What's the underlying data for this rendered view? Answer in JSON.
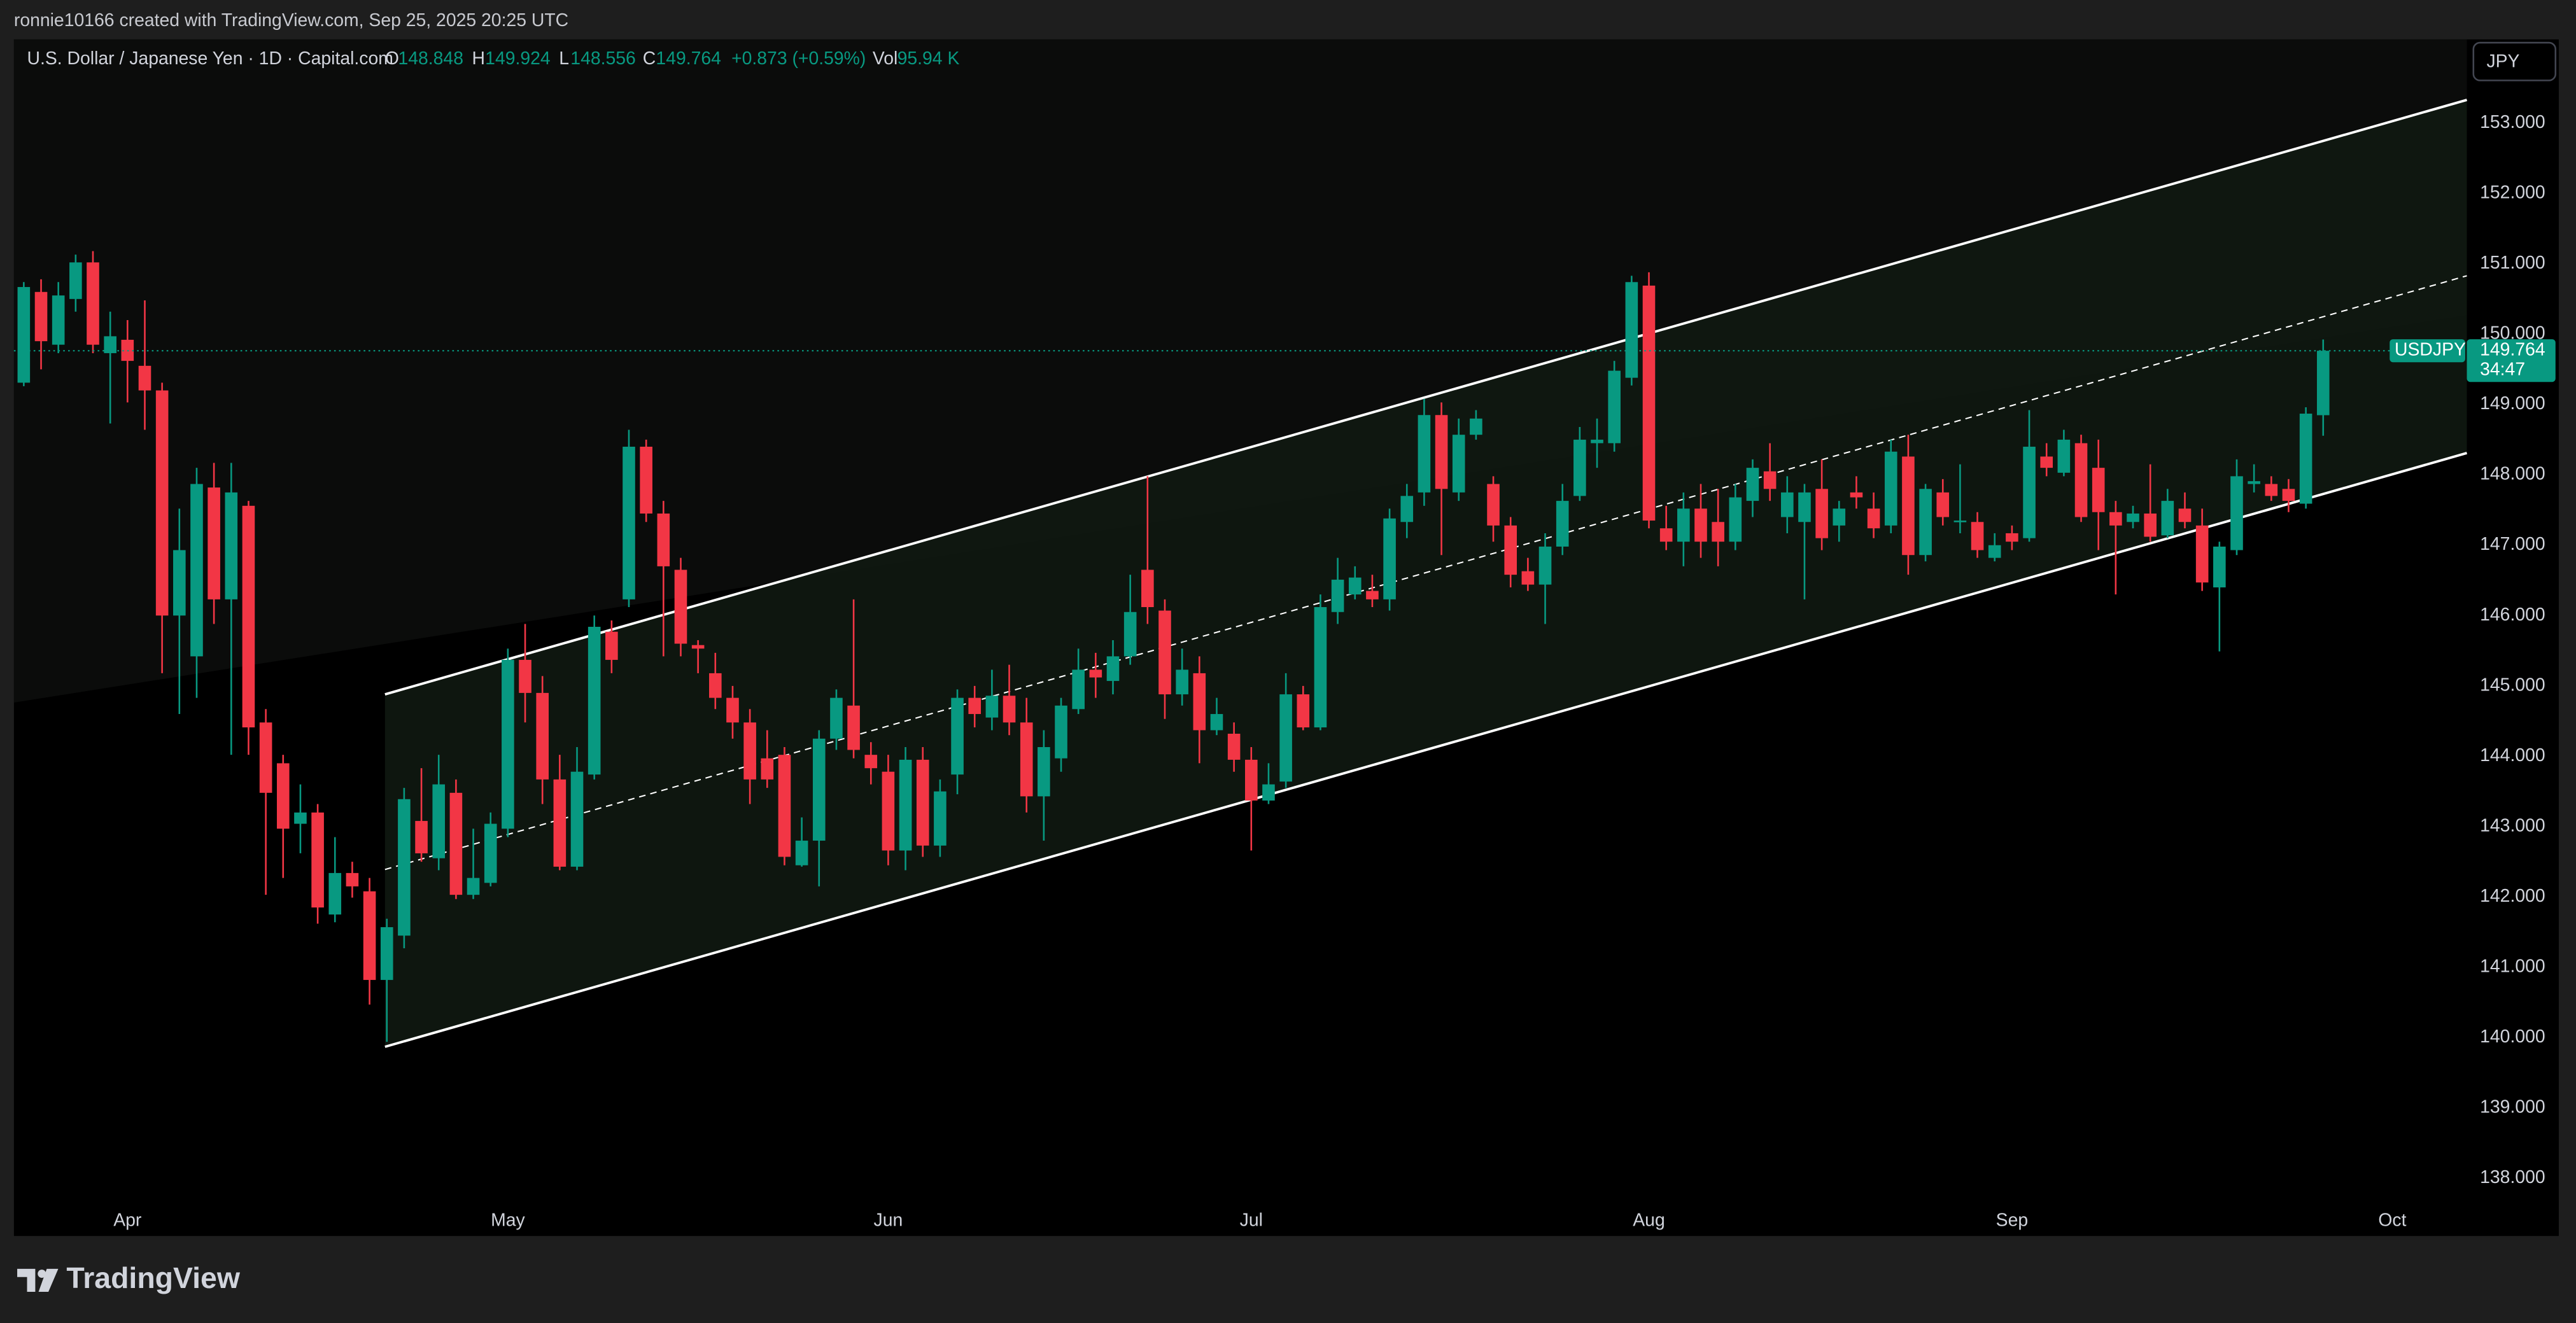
{
  "attribution": "ronnie10166 created with TradingView.com, Sep 25, 2025 20:25 UTC",
  "brand": "TradingView",
  "currency_button": "JPY",
  "chart_data": {
    "type": "candlestick",
    "title": "U.S. Dollar / Japanese Yen · 1D · Capital.com",
    "ohlc_labels": [
      "O",
      "H",
      "L",
      "C"
    ],
    "change": "+0.873 (+0.59%)",
    "volume_label": "Vol",
    "volume": "95.94 K",
    "symbol_label": "USDJPY",
    "countdown": "34:47",
    "up_color": "#089981",
    "down_color": "#f23645",
    "categories": [
      null,
      null,
      null,
      null,
      null,
      null,
      "Apr",
      null,
      null,
      null,
      null,
      null,
      null,
      null,
      null,
      null,
      null,
      null,
      null,
      null,
      null,
      null,
      null,
      null,
      null,
      null,
      null,
      null,
      "May",
      null,
      null,
      null,
      null,
      null,
      null,
      null,
      null,
      null,
      null,
      null,
      null,
      null,
      null,
      null,
      null,
      null,
      null,
      null,
      null,
      null,
      "Jun",
      null,
      null,
      null,
      null,
      null,
      null,
      null,
      null,
      null,
      null,
      null,
      null,
      null,
      null,
      null,
      null,
      null,
      null,
      null,
      null,
      "Jul",
      null,
      null,
      null,
      null,
      null,
      null,
      null,
      null,
      null,
      null,
      null,
      null,
      null,
      null,
      null,
      null,
      null,
      null,
      null,
      null,
      null,
      null,
      "Aug",
      null,
      null,
      null,
      null,
      null,
      null,
      null,
      null,
      null,
      null,
      null,
      null,
      null,
      null,
      null,
      null,
      null,
      null,
      null,
      null,
      "Sep",
      null,
      null,
      null,
      null,
      null,
      null,
      null,
      null,
      null,
      null,
      null,
      null,
      null,
      null,
      null,
      null,
      null,
      null,
      null,
      null,
      null,
      "Oct"
    ],
    "open": [
      149.31,
      150.6,
      149.85,
      150.5,
      151.02,
      149.73,
      149.92,
      149.55,
      149.2,
      146.0,
      145.42,
      147.82,
      146.23,
      147.56,
      144.48,
      143.9,
      143.04,
      143.2,
      141.75,
      142.34,
      142.08,
      140.82,
      141.45,
      143.08,
      142.55,
      143.48,
      142.03,
      142.2,
      142.97,
      145.37,
      144.9,
      143.67,
      142.43,
      143.74,
      145.77,
      146.23,
      148.4,
      147.45,
      146.65,
      145.58,
      145.18,
      144.83,
      144.48,
      143.97,
      144.02,
      142.45,
      142.8,
      144.25,
      144.72,
      144.02,
      143.78,
      142.66,
      143.95,
      142.73,
      143.74,
      144.83,
      144.55,
      144.86,
      144.48,
      143.43,
      143.97,
      144.67,
      145.23,
      145.07,
      145.42,
      146.65,
      146.07,
      144.88,
      145.18,
      144.37,
      144.32,
      143.95,
      143.37,
      143.64,
      144.88,
      144.41,
      146.05,
      146.3,
      146.35,
      146.23,
      147.33,
      147.75,
      148.85,
      147.75,
      148.57,
      147.87,
      147.28,
      146.63,
      146.44,
      146.98,
      147.7,
      148.45,
      148.45,
      149.38,
      150.69,
      147.24,
      147.05,
      147.52,
      147.33,
      147.05,
      147.63,
      148.05,
      147.4,
      147.33,
      147.8,
      147.28,
      147.75,
      147.52,
      147.28,
      148.26,
      146.86,
      147.75,
      147.33,
      147.33,
      146.82,
      147.17,
      147.1,
      148.26,
      148.03,
      148.45,
      148.1,
      147.47,
      147.33,
      147.45,
      147.14,
      147.52,
      147.28,
      146.4,
      146.93,
      147.87,
      147.87,
      147.8,
      147.59,
      148.848,
      null,
      null,
      null,
      null
    ],
    "high": [
      150.74,
      150.78,
      150.74,
      151.13,
      151.18,
      150.32,
      150.2,
      150.48,
      149.31,
      147.52,
      148.1,
      148.17,
      148.17,
      147.63,
      144.67,
      144.02,
      143.6,
      143.32,
      142.85,
      142.5,
      142.27,
      141.69,
      143.55,
      143.83,
      144.02,
      143.67,
      142.97,
      143.2,
      145.53,
      145.88,
      145.14,
      144.02,
      144.13,
      146.0,
      145.93,
      148.64,
      148.5,
      147.63,
      146.82,
      145.65,
      145.47,
      145.0,
      144.67,
      144.37,
      144.13,
      143.13,
      144.37,
      144.95,
      146.23,
      144.2,
      144.02,
      144.13,
      144.13,
      143.67,
      144.95,
      145.0,
      145.23,
      145.3,
      144.83,
      144.37,
      144.83,
      145.53,
      145.47,
      145.65,
      146.58,
      147.98,
      146.23,
      145.53,
      145.42,
      144.83,
      144.48,
      144.13,
      143.9,
      145.18,
      145.0,
      146.3,
      146.82,
      146.7,
      146.58,
      147.52,
      147.87,
      149.08,
      149.03,
      148.8,
      148.92,
      147.98,
      147.4,
      146.82,
      147.17,
      147.87,
      148.68,
      148.8,
      149.62,
      150.83,
      150.88,
      147.56,
      147.75,
      147.87,
      147.8,
      147.87,
      148.22,
      148.45,
      147.98,
      147.87,
      148.22,
      147.63,
      147.98,
      147.75,
      148.5,
      148.57,
      147.87,
      147.94,
      148.15,
      147.47,
      147.17,
      147.28,
      148.92,
      148.45,
      148.64,
      148.57,
      148.5,
      147.63,
      147.56,
      148.15,
      147.8,
      147.75,
      147.52,
      147.05,
      148.22,
      148.15,
      147.98,
      147.94,
      148.96,
      149.924,
      null,
      null,
      null,
      null
    ],
    "low": [
      149.26,
      149.5,
      149.73,
      150.32,
      149.73,
      148.73,
      149.03,
      148.64,
      145.18,
      144.6,
      144.83,
      145.88,
      144.02,
      144.02,
      142.03,
      142.27,
      142.62,
      141.62,
      141.64,
      141.99,
      140.47,
      139.94,
      141.27,
      142.5,
      142.38,
      141.97,
      141.97,
      142.15,
      142.85,
      144.48,
      143.32,
      142.38,
      142.38,
      143.67,
      145.18,
      146.12,
      147.33,
      145.42,
      145.42,
      145.18,
      144.67,
      144.25,
      143.32,
      143.55,
      142.45,
      142.43,
      142.15,
      144.09,
      143.97,
      143.6,
      142.45,
      142.38,
      142.57,
      142.57,
      143.46,
      144.41,
      144.37,
      144.3,
      143.2,
      142.8,
      143.78,
      144.6,
      144.83,
      144.88,
      145.3,
      145.88,
      144.53,
      144.72,
      143.9,
      144.3,
      143.78,
      142.66,
      143.32,
      143.55,
      144.37,
      144.37,
      145.88,
      146.23,
      146.12,
      146.07,
      147.1,
      147.56,
      146.86,
      147.63,
      148.5,
      147.05,
      146.4,
      146.35,
      145.88,
      146.86,
      147.63,
      148.1,
      148.33,
      149.27,
      147.24,
      146.93,
      146.7,
      146.82,
      146.7,
      146.93,
      147.4,
      147.63,
      147.17,
      146.23,
      146.93,
      147.05,
      147.52,
      147.1,
      147.17,
      146.58,
      146.77,
      147.28,
      147.17,
      146.82,
      146.77,
      146.93,
      147.05,
      147.98,
      147.98,
      147.33,
      146.93,
      146.3,
      147.24,
      147.05,
      147.1,
      147.24,
      146.35,
      145.49,
      146.86,
      147.75,
      147.63,
      147.47,
      147.52,
      148.556,
      null,
      null,
      null,
      null
    ],
    "close": [
      150.67,
      149.9,
      150.55,
      151.02,
      149.85,
      149.97,
      149.62,
      149.2,
      146.0,
      146.93,
      147.87,
      146.23,
      147.75,
      144.41,
      143.48,
      142.97,
      143.2,
      141.85,
      142.34,
      142.15,
      140.82,
      141.57,
      143.39,
      142.62,
      143.6,
      142.03,
      142.27,
      143.04,
      145.37,
      144.9,
      143.67,
      142.43,
      143.78,
      145.84,
      145.37,
      148.4,
      147.45,
      146.7,
      145.6,
      145.53,
      144.83,
      144.48,
      143.67,
      143.67,
      142.57,
      142.8,
      144.25,
      144.83,
      144.09,
      143.83,
      142.66,
      143.95,
      142.73,
      143.5,
      144.83,
      144.6,
      144.86,
      144.48,
      143.43,
      144.13,
      144.72,
      145.23,
      145.12,
      145.42,
      146.05,
      146.12,
      144.88,
      145.23,
      144.37,
      144.6,
      143.95,
      143.37,
      143.6,
      144.88,
      144.41,
      146.12,
      146.51,
      146.54,
      146.23,
      147.38,
      147.7,
      148.85,
      147.8,
      148.57,
      148.8,
      147.28,
      146.58,
      146.44,
      146.98,
      147.63,
      148.5,
      148.5,
      149.48,
      150.74,
      147.35,
      147.05,
      147.52,
      147.05,
      147.05,
      147.68,
      148.1,
      147.8,
      147.75,
      147.75,
      147.1,
      147.52,
      147.68,
      147.24,
      148.33,
      146.86,
      147.8,
      147.4,
      147.35,
      146.93,
      147.0,
      147.05,
      148.4,
      148.1,
      148.5,
      147.4,
      147.47,
      147.28,
      147.45,
      147.12,
      147.63,
      147.33,
      146.47,
      146.98,
      147.98,
      147.91,
      147.7,
      147.63,
      148.87,
      149.764,
      null,
      null,
      null,
      null
    ],
    "channel": {
      "upper": [
        144.88,
        153.33
      ],
      "middle": [
        142.39,
        150.83
      ],
      "lower": [
        139.87,
        148.31
      ]
    },
    "ylim": [
      137.18,
      154.19
    ],
    "yticks": [
      {
        "value": 138,
        "label": "138.000"
      },
      {
        "value": 139,
        "label": "139.000"
      },
      {
        "value": 140,
        "label": "140.000"
      },
      {
        "value": 141,
        "label": "141.000"
      },
      {
        "value": 142,
        "label": "142.000"
      },
      {
        "value": 143,
        "label": "143.000"
      },
      {
        "value": 144,
        "label": "144.000"
      },
      {
        "value": 145,
        "label": "145.000"
      },
      {
        "value": 146,
        "label": "146.000"
      },
      {
        "value": 147,
        "label": "147.000"
      },
      {
        "value": 148,
        "label": "148.000"
      },
      {
        "value": 149,
        "label": "149.000"
      },
      {
        "value": 150,
        "label": "150.000"
      },
      {
        "value": 151,
        "label": "151.000"
      },
      {
        "value": 152,
        "label": "152.000"
      },
      {
        "value": 153,
        "label": "153.000"
      }
    ],
    "grid": false
  }
}
